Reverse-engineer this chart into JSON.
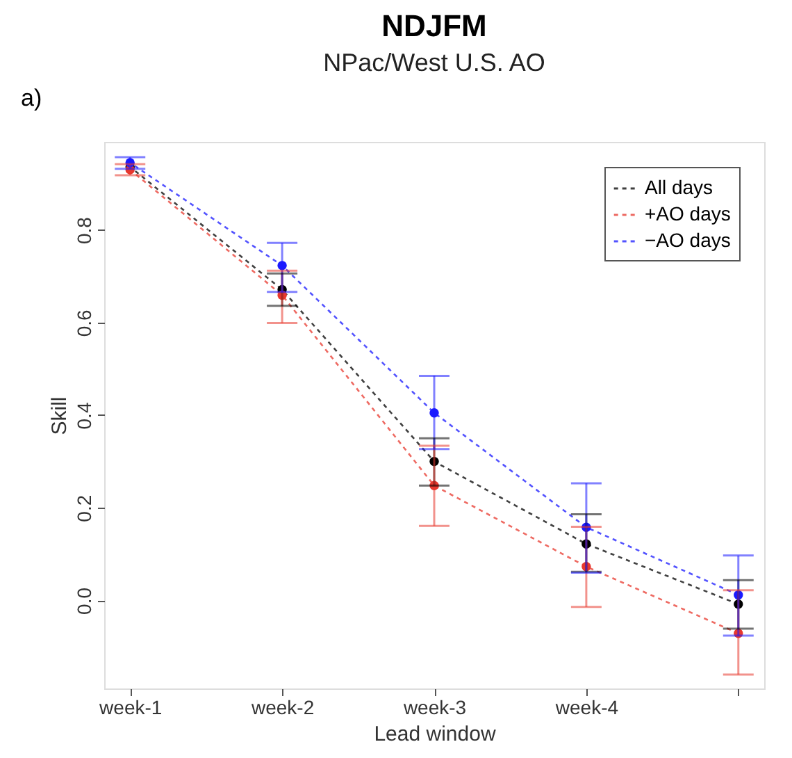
{
  "chart_data": {
    "type": "line",
    "title": "NDJFM",
    "subtitle": "NPac/West U.S. AO",
    "xlabel": "Lead window",
    "ylabel": "Skill",
    "annotations": [
      "a)"
    ],
    "categories": [
      "week-1",
      "week-2",
      "week-3",
      "week-4",
      null
    ],
    "series": [
      {
        "name": "All days",
        "color": "#000000",
        "values": [
          0.936,
          0.671,
          0.3,
          0.122,
          -0.008
        ],
        "errors": [
          null,
          [
            0.636,
            0.706
          ],
          [
            0.248,
            0.35
          ],
          [
            0.062,
            0.186
          ],
          [
            -0.061,
            0.044
          ]
        ]
      },
      {
        "name": "+AO days",
        "color": "#e8382e",
        "values": [
          0.93,
          0.659,
          0.248,
          0.073,
          -0.071
        ],
        "errors": [
          [
            0.918,
            0.942
          ],
          [
            0.599,
            0.712
          ],
          [
            0.161,
            0.334
          ],
          [
            -0.014,
            0.159
          ],
          [
            -0.16,
            0.022
          ]
        ]
      },
      {
        "name": "−AO days",
        "color": "#1a1aff",
        "values": [
          0.945,
          0.723,
          0.405,
          0.158,
          0.012
        ],
        "errors": [
          [
            0.932,
            0.957
          ],
          [
            0.666,
            0.772
          ],
          [
            0.327,
            0.485
          ],
          [
            0.06,
            0.253
          ],
          [
            -0.076,
            0.097
          ]
        ]
      }
    ],
    "ylim": [
      -0.19,
      0.99
    ],
    "yticks": [
      {
        "value": 0,
        "label": "0.0"
      },
      0.2,
      0.4,
      0.6,
      0.8
    ],
    "grid": false,
    "legend": "top right",
    "marker": "circle",
    "line_style": "dashed"
  }
}
